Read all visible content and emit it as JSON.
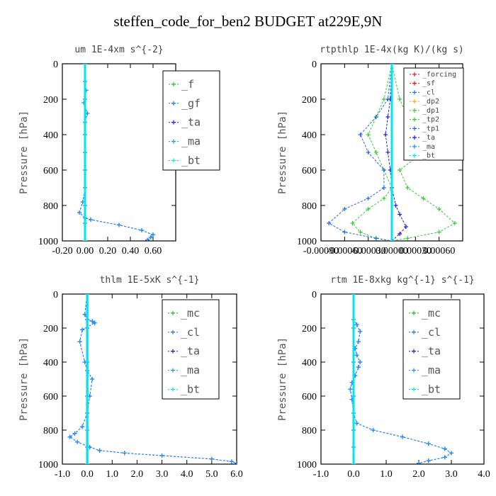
{
  "title": "steffen_code_for_ben2  BUDGET at229E,9N",
  "colors": {
    "_f": "#22bb22",
    "_gf": "#1f77dd",
    "_ta": "#1a1aee",
    "_ma": "#1e90ff",
    "_bt": "#00e5ee",
    "_mc": "#22bb22",
    "_cl": "#1f77dd",
    "_forcing": "#cc2222",
    "_sf": "#ee1111",
    "_dp2": "#ffaa00",
    "_dp1": "#33cc33",
    "_tp2": "#33cc33",
    "_tp1": "#2266ee"
  },
  "chart_data": [
    {
      "type": "line",
      "title": "um   1E-4xm s^{-2}",
      "ylabel": "Pressure [hPa]",
      "xlim": [
        -0.2,
        0.8
      ],
      "ylim": [
        1000,
        0
      ],
      "xticks": [
        -0.2,
        0.0,
        0.2,
        0.4,
        0.6
      ],
      "xtick_labels": [
        "-0.20",
        "0.00",
        "0.20",
        "0.40",
        "0.60"
      ],
      "yticks": [
        0,
        200,
        400,
        600,
        800,
        1000
      ],
      "ytick_labels": [
        "0",
        "200",
        "400",
        "600",
        "800",
        "1000"
      ],
      "legend": [
        "_f",
        "_gf",
        "_ta",
        "_ma",
        "_bt"
      ],
      "series": [
        {
          "name": "_f",
          "x": [
            0,
            0
          ],
          "y": [
            0,
            1000
          ]
        },
        {
          "name": "_gf",
          "x": [
            0,
            0,
            0,
            0,
            0,
            0,
            0
          ],
          "y": [
            0,
            200,
            400,
            600,
            800,
            900,
            1000
          ]
        },
        {
          "name": "_ta",
          "x": [
            0,
            0.0,
            0.01,
            -0.01,
            0.02,
            0.0,
            0.0,
            0.0,
            -0.02,
            -0.05,
            0.0,
            0.05,
            0.3,
            0.5,
            0.6,
            0.58,
            0.55
          ],
          "y": [
            0,
            100,
            150,
            220,
            280,
            330,
            500,
            700,
            780,
            840,
            870,
            880,
            910,
            940,
            965,
            980,
            995
          ]
        },
        {
          "name": "_ma",
          "x": [
            0,
            0.0,
            0.01,
            -0.01,
            0.02,
            0.0,
            0.0,
            0.0,
            -0.02,
            -0.05,
            0.0,
            0.05,
            0.3,
            0.5,
            0.6,
            0.58,
            0.55
          ],
          "y": [
            0,
            100,
            150,
            220,
            280,
            330,
            500,
            700,
            780,
            840,
            870,
            880,
            910,
            940,
            965,
            980,
            995
          ]
        },
        {
          "name": "_bt",
          "x": [
            0,
            0
          ],
          "y": [
            0,
            1000
          ]
        }
      ]
    },
    {
      "type": "line",
      "title": "rtpthlp   1E-4x(kg K)/(kg s)",
      "ylabel": "Pressure [hPa]",
      "xlim": [
        -0.0009,
        0.0009
      ],
      "ylim": [
        1000,
        0
      ],
      "xticks": [
        -0.0009,
        -0.0006,
        -0.0003,
        0.0,
        0.0003,
        0.0006
      ],
      "xtick_labels": [
        "-0.00090",
        "-0.00060",
        "-0.00030",
        "0.00000",
        "0.00030",
        "0.00060"
      ],
      "yticks": [
        0,
        200,
        400,
        600,
        800,
        1000
      ],
      "ytick_labels": [
        "0",
        "200",
        "400",
        "600",
        "800",
        "1000"
      ],
      "legend": [
        "_forcing",
        "_sf",
        "_cl",
        "_dp2",
        "_dp1",
        "_tp2",
        "_tp1",
        "_ta",
        "_ma",
        "_bt"
      ],
      "series": [
        {
          "name": "_forcing",
          "x": [
            0,
            0
          ],
          "y": [
            0,
            1000
          ]
        },
        {
          "name": "_sf",
          "x": [
            0,
            0
          ],
          "y": [
            0,
            1000
          ]
        },
        {
          "name": "_cl",
          "x": [
            0,
            0
          ],
          "y": [
            0,
            1000
          ]
        },
        {
          "name": "_dp2",
          "x": [
            0,
            0
          ],
          "y": [
            0,
            1000
          ]
        },
        {
          "name": "_dp1",
          "x": [
            0,
            0.0001,
            0.0002,
            0.0003,
            0.0004,
            0.0001,
            0.0002,
            0.0004,
            0.0006,
            0.0008,
            0.0006,
            0.0002,
            0.0
          ],
          "y": [
            0,
            200,
            300,
            400,
            500,
            600,
            700,
            760,
            820,
            900,
            950,
            985,
            1000
          ]
        },
        {
          "name": "_tp2",
          "x": [
            0,
            -0.0001,
            -0.0002,
            -0.0003,
            -0.0002,
            -0.0001,
            0.0,
            -0.0001,
            -0.0003,
            -0.0005,
            -0.0004,
            -0.0002,
            0.0
          ],
          "y": [
            0,
            200,
            300,
            400,
            500,
            600,
            700,
            760,
            820,
            900,
            950,
            985,
            1000
          ]
        },
        {
          "name": "_tp1",
          "x": [
            0,
            -5e-05,
            -0.0002,
            -0.0004,
            -0.0003,
            -0.0001,
            -0.0001,
            -0.0003,
            -0.0006,
            -0.0008,
            -0.0006,
            -0.0002,
            0.0
          ],
          "y": [
            0,
            200,
            300,
            400,
            500,
            600,
            700,
            760,
            820,
            900,
            950,
            985,
            1000
          ]
        },
        {
          "name": "_ta",
          "x": [
            0,
            -2e-05,
            -5e-05,
            -8e-05,
            -5e-05,
            -2e-05,
            0.0,
            5e-05,
            0.0001,
            0.00018,
            0.0001,
            0.0
          ],
          "y": [
            0,
            200,
            300,
            400,
            500,
            600,
            700,
            800,
            850,
            920,
            960,
            1000
          ]
        },
        {
          "name": "_ma",
          "x": [
            0,
            0
          ],
          "y": [
            0,
            1000
          ]
        },
        {
          "name": "_bt",
          "x": [
            0,
            0
          ],
          "y": [
            0,
            1000
          ]
        }
      ]
    },
    {
      "type": "line",
      "title": "thlm   1E-5xK s^{-1}",
      "ylabel": "Pressure [hPa]",
      "xlim": [
        -1.0,
        6.0
      ],
      "ylim": [
        1000,
        0
      ],
      "xticks": [
        -1.0,
        0.0,
        1.0,
        2.0,
        3.0,
        4.0,
        5.0,
        6.0
      ],
      "xtick_labels": [
        "-1.0",
        "0.0",
        "1.0",
        "2.0",
        "3.0",
        "4.0",
        "5.0",
        "6.0"
      ],
      "yticks": [
        0,
        200,
        400,
        600,
        800,
        1000
      ],
      "ytick_labels": [
        "0",
        "200",
        "400",
        "600",
        "800",
        "1000"
      ],
      "legend": [
        "_mc",
        "_cl",
        "_ta",
        "_ma",
        "_bt"
      ],
      "series": [
        {
          "name": "_mc",
          "x": [
            0,
            0
          ],
          "y": [
            0,
            1000
          ]
        },
        {
          "name": "_cl",
          "x": [
            0,
            0,
            0,
            0,
            0,
            0,
            0
          ],
          "y": [
            0,
            200,
            400,
            600,
            800,
            900,
            1000
          ]
        },
        {
          "name": "_ta",
          "x": [
            0,
            -0.1,
            0.0,
            0.2,
            0.3,
            -0.2,
            -0.3,
            -0.1,
            0.0,
            0.2,
            0.1,
            0.0,
            -0.2,
            -0.5,
            -0.7,
            -0.4,
            0.1,
            0.5,
            1.5,
            3.0,
            5.0,
            5.8,
            6.0
          ],
          "y": [
            0,
            120,
            150,
            160,
            170,
            210,
            280,
            400,
            450,
            500,
            600,
            700,
            780,
            820,
            840,
            870,
            900,
            920,
            935,
            950,
            970,
            985,
            995
          ]
        },
        {
          "name": "_ma",
          "x": [
            0,
            -0.1,
            0.0,
            0.2,
            0.3,
            -0.2,
            -0.3,
            -0.1,
            0.0,
            0.2,
            0.1,
            0.0,
            -0.2,
            -0.5,
            -0.7,
            -0.4,
            0.1,
            0.5,
            1.5,
            3.0,
            5.0,
            5.8,
            6.0
          ],
          "y": [
            0,
            120,
            150,
            160,
            170,
            210,
            280,
            400,
            450,
            500,
            600,
            700,
            780,
            820,
            840,
            870,
            900,
            920,
            935,
            950,
            970,
            985,
            995
          ]
        },
        {
          "name": "_bt",
          "x": [
            0,
            0
          ],
          "y": [
            0,
            1000
          ]
        }
      ]
    },
    {
      "type": "line",
      "title": "rtm   1E-8xkg kg^{-1} s^{-1}",
      "ylabel": "Pressure [hPa]",
      "xlim": [
        -1.0,
        4.0
      ],
      "ylim": [
        1000,
        0
      ],
      "xticks": [
        -1.0,
        0.0,
        1.0,
        2.0,
        3.0,
        4.0
      ],
      "xtick_labels": [
        "-1.0",
        "0.0",
        "1.0",
        "2.0",
        "3.0",
        "4.0"
      ],
      "yticks": [
        0,
        200,
        400,
        600,
        800,
        1000
      ],
      "ytick_labels": [
        "0",
        "200",
        "400",
        "600",
        "800",
        "1000"
      ],
      "legend": [
        "_mc",
        "_cl",
        "_ta",
        "_ma",
        "_bt"
      ],
      "series": [
        {
          "name": "_mc",
          "x": [
            0,
            0
          ],
          "y": [
            0,
            1000
          ]
        },
        {
          "name": "_cl",
          "x": [
            0,
            0,
            0,
            0,
            0,
            0,
            0
          ],
          "y": [
            0,
            200,
            400,
            600,
            800,
            900,
            1000
          ]
        },
        {
          "name": "_ta",
          "x": [
            0,
            0.0,
            0.1,
            0.2,
            0.15,
            0.05,
            0.1,
            0.2,
            0.15,
            0.05,
            -0.05,
            -0.1,
            -0.05,
            0.0,
            0.1,
            0.6,
            1.5,
            2.3,
            2.8,
            3.0,
            2.8,
            2.3,
            2.0
          ],
          "y": [
            0,
            150,
            180,
            220,
            280,
            320,
            360,
            400,
            430,
            480,
            520,
            560,
            620,
            700,
            760,
            800,
            840,
            880,
            910,
            935,
            960,
            980,
            995
          ]
        },
        {
          "name": "_ma",
          "x": [
            0,
            0.0,
            0.1,
            0.2,
            0.15,
            0.05,
            0.1,
            0.2,
            0.15,
            0.05,
            -0.05,
            -0.1,
            -0.05,
            0.0,
            0.1,
            0.6,
            1.5,
            2.3,
            2.8,
            3.0,
            2.8,
            2.3,
            2.0
          ],
          "y": [
            0,
            150,
            180,
            220,
            280,
            320,
            360,
            400,
            430,
            480,
            520,
            560,
            620,
            700,
            760,
            800,
            840,
            880,
            910,
            935,
            960,
            980,
            995
          ]
        },
        {
          "name": "_bt",
          "x": [
            0,
            0
          ],
          "y": [
            0,
            1000
          ]
        }
      ]
    }
  ]
}
